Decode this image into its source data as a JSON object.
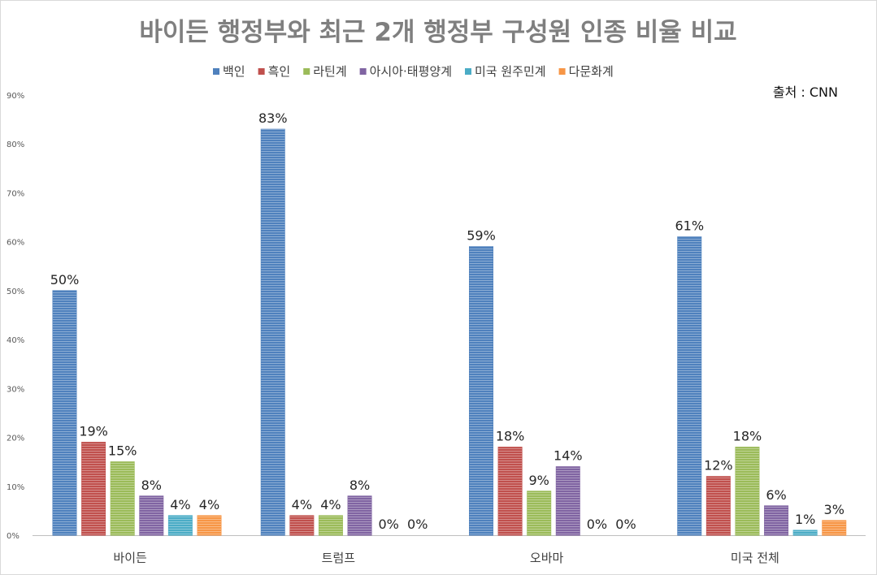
{
  "chart_data": {
    "type": "bar",
    "title": "바이든 행정부와 최근 2개 행정부 구성원 인종 비율 비교",
    "source": "출처 : CNN",
    "xlabel": "",
    "ylabel": "",
    "ylim": [
      0,
      90
    ],
    "yticks": [
      "0%",
      "10%",
      "20%",
      "30%",
      "40%",
      "50%",
      "60%",
      "70%",
      "80%",
      "90%"
    ],
    "grid": false,
    "legend_position": "top",
    "categories": [
      "바이든",
      "트럼프",
      "오바마",
      "미국 전체"
    ],
    "series": [
      {
        "name": "백인",
        "color": "#4f81bd",
        "values": [
          50,
          83,
          59,
          61
        ]
      },
      {
        "name": "흑인",
        "color": "#c0504d",
        "values": [
          19,
          4,
          18,
          12
        ]
      },
      {
        "name": "라틴계",
        "color": "#9bbb59",
        "values": [
          15,
          4,
          9,
          18
        ]
      },
      {
        "name": "아시아·태평양계",
        "color": "#8064a2",
        "values": [
          8,
          8,
          14,
          6
        ]
      },
      {
        "name": "미국 원주민계",
        "color": "#4bacc6",
        "values": [
          4,
          0,
          0,
          1
        ]
      },
      {
        "name": "다문화계",
        "color": "#f79646",
        "values": [
          4,
          0,
          0,
          3
        ]
      }
    ],
    "value_suffix": "%"
  }
}
